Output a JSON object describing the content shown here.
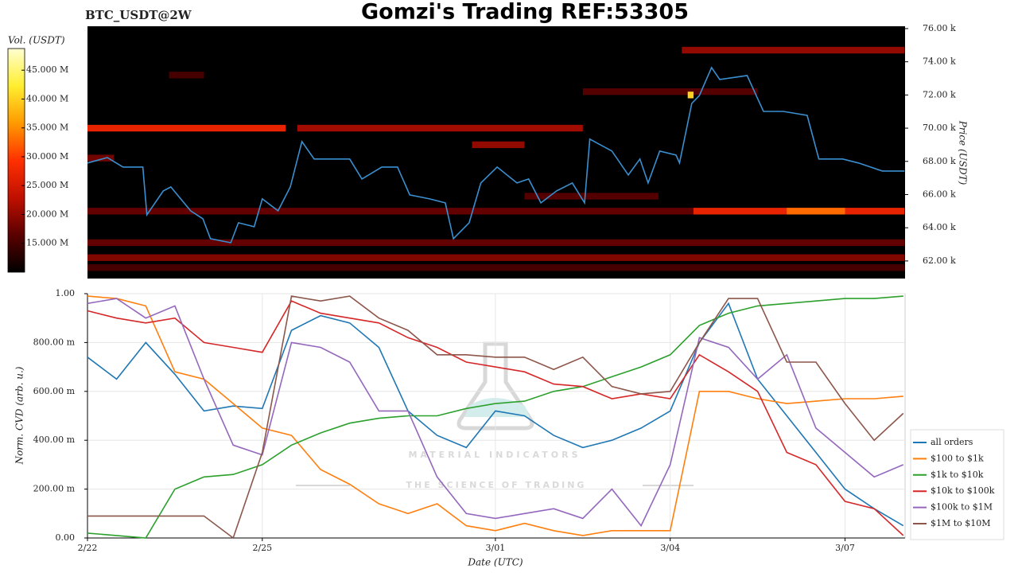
{
  "header": {
    "symbol": "BTC_USDT@2W",
    "title": "Gomzi's Trading REF:53305"
  },
  "watermark": {
    "name": "MATERIAL INDICATORS",
    "tagline": "THE SCIENCE OF TRADING"
  },
  "chart_data": [
    {
      "type": "heatmap",
      "ylabel": "Price (USDT)",
      "xlim": [
        0,
        14.03
      ],
      "ylim": [
        60940,
        76140
      ],
      "yticks": [
        {
          "value": 62000,
          "label": "62.00 k"
        },
        {
          "value": 64000,
          "label": "64.00 k"
        },
        {
          "value": 66000,
          "label": "66.00 k"
        },
        {
          "value": 68000,
          "label": "68.00 k"
        },
        {
          "value": 70000,
          "label": "70.00 k"
        },
        {
          "value": 72000,
          "label": "72.00 k"
        },
        {
          "value": 74000,
          "label": "74.00 k"
        },
        {
          "value": 76000,
          "label": "76.00 k"
        }
      ],
      "colorbar": {
        "label": "Vol. (USDT)",
        "lim": [
          10000000,
          48750000
        ],
        "ticks": [
          {
            "value": 15000000,
            "label": "15.000 M"
          },
          {
            "value": 20000000,
            "label": "20.000 M"
          },
          {
            "value": 25000000,
            "label": "25.000 M"
          },
          {
            "value": 30000000,
            "label": "30.000 M"
          },
          {
            "value": 35000000,
            "label": "35.000 M"
          },
          {
            "value": 40000000,
            "label": "40.000 M"
          },
          {
            "value": 45000000,
            "label": "45.000 M"
          }
        ],
        "colormap": [
          "#000000",
          "#5a0000",
          "#c01000",
          "#ff3000",
          "#ff9a00",
          "#ffee30",
          "#ffffd0"
        ]
      },
      "levels": [
        {
          "price": [
            69800,
            70200
          ],
          "time": [
            0,
            3.4
          ],
          "volume": 27000000
        },
        {
          "price": [
            69800,
            70200
          ],
          "time": [
            3.6,
            8.5
          ],
          "volume": 21000000
        },
        {
          "price": [
            64800,
            65200
          ],
          "time": [
            0,
            14.02
          ],
          "volume": 17000000
        },
        {
          "price": [
            64800,
            65200
          ],
          "time": [
            10.4,
            14.02
          ],
          "volume": 27000000
        },
        {
          "price": [
            64800,
            65200
          ],
          "time": [
            12.0,
            13.0
          ],
          "volume": 33000000
        },
        {
          "price": [
            62900,
            63300
          ],
          "time": [
            0,
            14.02
          ],
          "volume": 17000000
        },
        {
          "price": [
            62000,
            62400
          ],
          "time": [
            0,
            14.02
          ],
          "volume": 19000000
        },
        {
          "price": [
            61400,
            61800
          ],
          "time": [
            0,
            14.02
          ],
          "volume": 15000000
        },
        {
          "price": [
            74500,
            74900
          ],
          "time": [
            10.2,
            14.02
          ],
          "volume": 20000000
        },
        {
          "price": [
            72000,
            72400
          ],
          "time": [
            8.5,
            11.5
          ],
          "volume": 16000000
        },
        {
          "price": [
            68800,
            69200
          ],
          "time": [
            6.6,
            7.5
          ],
          "volume": 20000000
        },
        {
          "price": [
            65700,
            66100
          ],
          "time": [
            7.5,
            9.8
          ],
          "volume": 16000000
        },
        {
          "price": [
            68000,
            68400
          ],
          "time": [
            0,
            0.45
          ],
          "volume": 18000000
        },
        {
          "price": [
            73000,
            73400
          ],
          "time": [
            1.4,
            2.0
          ],
          "volume": 15000000
        },
        {
          "price": [
            71800,
            72200
          ],
          "time": [
            10.3,
            10.4
          ],
          "volume": 40000000
        }
      ],
      "series": [
        {
          "color": "#3a8fd0",
          "x": [
            0,
            0.34,
            0.61,
            0.95,
            1.02,
            1.3,
            1.43,
            1.77,
            1.98,
            2.11,
            2.46,
            2.59,
            2.86,
            3.0,
            3.27,
            3.48,
            3.68,
            3.89,
            4.23,
            4.5,
            4.71,
            5.05,
            5.32,
            5.53,
            5.87,
            6.14,
            6.28,
            6.55,
            6.75,
            7.03,
            7.37,
            7.57,
            7.78,
            8.05,
            8.32,
            8.53,
            8.62,
            9.0,
            9.28,
            9.48,
            9.62,
            9.82,
            10.1,
            10.16,
            10.37,
            10.5,
            10.71,
            10.85,
            11.32,
            11.6,
            11.94,
            12.35,
            12.55,
            12.96,
            13.23,
            13.64,
            14.02
          ],
          "values": [
            67900,
            68230,
            67660,
            67660,
            64780,
            66220,
            66460,
            65020,
            64540,
            63340,
            63100,
            64300,
            64060,
            65740,
            65020,
            66460,
            69190,
            68140,
            68140,
            68140,
            66940,
            67660,
            67660,
            65980,
            65740,
            65500,
            63340,
            64300,
            66700,
            67660,
            66700,
            66940,
            65500,
            66220,
            66700,
            65500,
            69340,
            68620,
            67180,
            68140,
            66700,
            68620,
            68380,
            67900,
            71490,
            71970,
            73650,
            72930,
            73170,
            71010,
            71010,
            70770,
            68140,
            68140,
            67900,
            67420,
            67420
          ]
        }
      ]
    },
    {
      "type": "line",
      "xlabel": "Date (UTC)",
      "ylabel": "Norm. CVD (arb. u.)",
      "x": [
        0,
        0.5,
        1,
        1.5,
        2,
        2.5,
        3,
        3.5,
        4,
        4.5,
        5,
        5.5,
        6,
        6.5,
        7,
        7.5,
        8,
        8.5,
        9,
        9.5,
        10,
        10.5,
        11,
        11.5,
        12,
        12.5,
        13,
        13.5,
        14
      ],
      "xlim": [
        0,
        14.03
      ],
      "xticks": [
        {
          "value": 0,
          "label": "2/22"
        },
        {
          "value": 3,
          "label": "2/25"
        },
        {
          "value": 7,
          "label": "3/01"
        },
        {
          "value": 10,
          "label": "3/04"
        },
        {
          "value": 13,
          "label": "3/07"
        }
      ],
      "ylim": [
        0,
        1
      ],
      "yticks": [
        {
          "value": 0,
          "label": "0.00"
        },
        {
          "value": 0.2,
          "label": "200.00 m"
        },
        {
          "value": 0.4,
          "label": "400.00 m"
        },
        {
          "value": 0.6,
          "label": "600.00 m"
        },
        {
          "value": 0.8,
          "label": "800.00 m"
        },
        {
          "value": 1,
          "label": "1.00"
        }
      ],
      "grid": true,
      "legend": "right",
      "series": [
        {
          "name": "all orders",
          "color": "#1f77b4",
          "values": [
            0.74,
            0.65,
            0.8,
            0.67,
            0.52,
            0.54,
            0.53,
            0.85,
            0.91,
            0.88,
            0.78,
            0.52,
            0.42,
            0.37,
            0.52,
            0.5,
            0.42,
            0.37,
            0.4,
            0.45,
            0.52,
            0.8,
            0.96,
            0.65,
            0.5,
            0.35,
            0.2,
            0.12,
            0.05
          ]
        },
        {
          "name": "$100 to $1k",
          "color": "#ff7f0e",
          "values": [
            0.99,
            0.98,
            0.95,
            0.68,
            0.65,
            0.55,
            0.45,
            0.42,
            0.28,
            0.22,
            0.14,
            0.1,
            0.14,
            0.05,
            0.03,
            0.06,
            0.03,
            0.01,
            0.03,
            0.03,
            0.03,
            0.6,
            0.6,
            0.57,
            0.55,
            0.56,
            0.57,
            0.57,
            0.58
          ]
        },
        {
          "name": "$1k to $10k",
          "color": "#2ca02c",
          "values": [
            0.02,
            0.01,
            0.0,
            0.2,
            0.25,
            0.26,
            0.3,
            0.38,
            0.43,
            0.47,
            0.49,
            0.5,
            0.5,
            0.53,
            0.55,
            0.56,
            0.6,
            0.62,
            0.66,
            0.7,
            0.75,
            0.87,
            0.92,
            0.95,
            0.96,
            0.97,
            0.98,
            0.98,
            0.99
          ]
        },
        {
          "name": "$10k to $100k",
          "color": "#d62728",
          "values": [
            0.93,
            0.9,
            0.88,
            0.9,
            0.8,
            0.78,
            0.76,
            0.97,
            0.92,
            0.9,
            0.88,
            0.82,
            0.78,
            0.72,
            0.7,
            0.68,
            0.63,
            0.62,
            0.57,
            0.59,
            0.57,
            0.75,
            0.68,
            0.6,
            0.35,
            0.3,
            0.15,
            0.12,
            0.01
          ]
        },
        {
          "name": "$100k to $1M",
          "color": "#9467bd",
          "values": [
            0.96,
            0.98,
            0.9,
            0.95,
            0.65,
            0.38,
            0.34,
            0.8,
            0.78,
            0.72,
            0.52,
            0.52,
            0.25,
            0.1,
            0.08,
            0.1,
            0.12,
            0.08,
            0.2,
            0.05,
            0.3,
            0.82,
            0.78,
            0.65,
            0.75,
            0.45,
            0.35,
            0.25,
            0.3
          ]
        },
        {
          "name": "$1M to $10M",
          "color": "#8c564b",
          "values": [
            0.09,
            0.09,
            0.09,
            0.09,
            0.09,
            0.0,
            0.35,
            0.99,
            0.97,
            0.99,
            0.9,
            0.85,
            0.75,
            0.75,
            0.74,
            0.74,
            0.69,
            0.74,
            0.62,
            0.59,
            0.6,
            0.8,
            0.98,
            0.98,
            0.72,
            0.72,
            0.55,
            0.4,
            0.51
          ]
        }
      ]
    }
  ]
}
